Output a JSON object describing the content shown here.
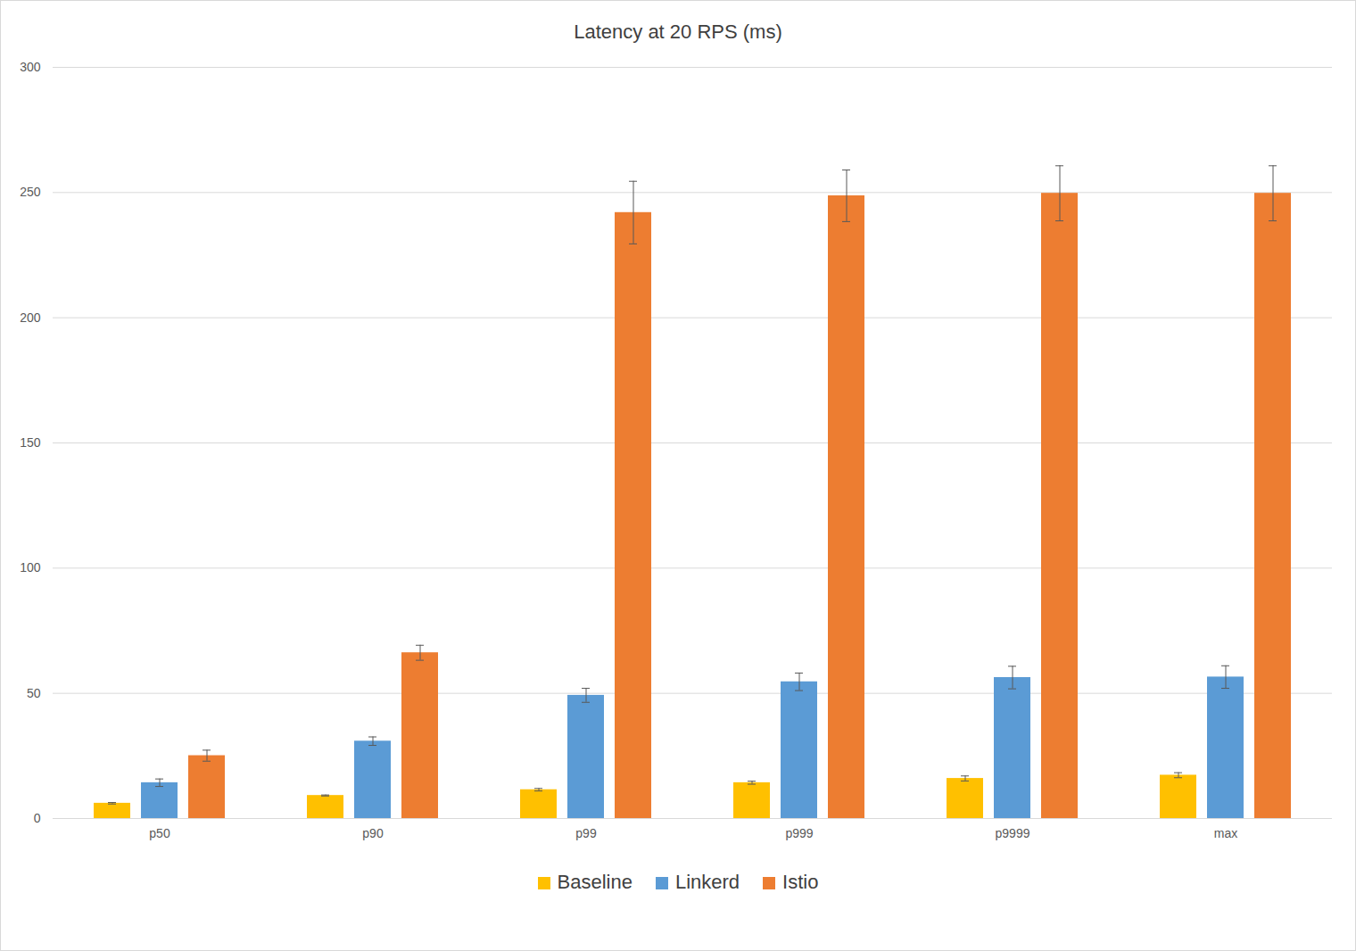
{
  "chart_data": {
    "type": "bar",
    "title": "Latency at 20 RPS (ms)",
    "categories": [
      "p50",
      "p90",
      "p99",
      "p999",
      "p9999",
      "max"
    ],
    "series": [
      {
        "name": "Baseline",
        "color": "#ffc000",
        "values": [
          6.1,
          9.2,
          11.5,
          14.3,
          16.0,
          17.3
        ],
        "errors": [
          0.3,
          0.2,
          0.5,
          0.6,
          1.0,
          1.0
        ]
      },
      {
        "name": "Linkerd",
        "color": "#5b9bd5",
        "values": [
          14.3,
          30.9,
          49.2,
          54.6,
          56.3,
          56.5
        ],
        "errors": [
          1.5,
          1.7,
          2.8,
          3.5,
          4.5,
          4.5
        ]
      },
      {
        "name": "Istio",
        "color": "#ed7d31",
        "values": [
          25.1,
          66.2,
          242.0,
          248.7,
          249.7,
          249.7
        ],
        "errors": [
          2.2,
          3.0,
          12.5,
          10.3,
          11.0,
          11.0
        ]
      }
    ],
    "ylim": [
      0,
      300
    ],
    "yticks": [
      0,
      50,
      100,
      150,
      200,
      250,
      300
    ],
    "grid": true,
    "legend": "bottom"
  }
}
